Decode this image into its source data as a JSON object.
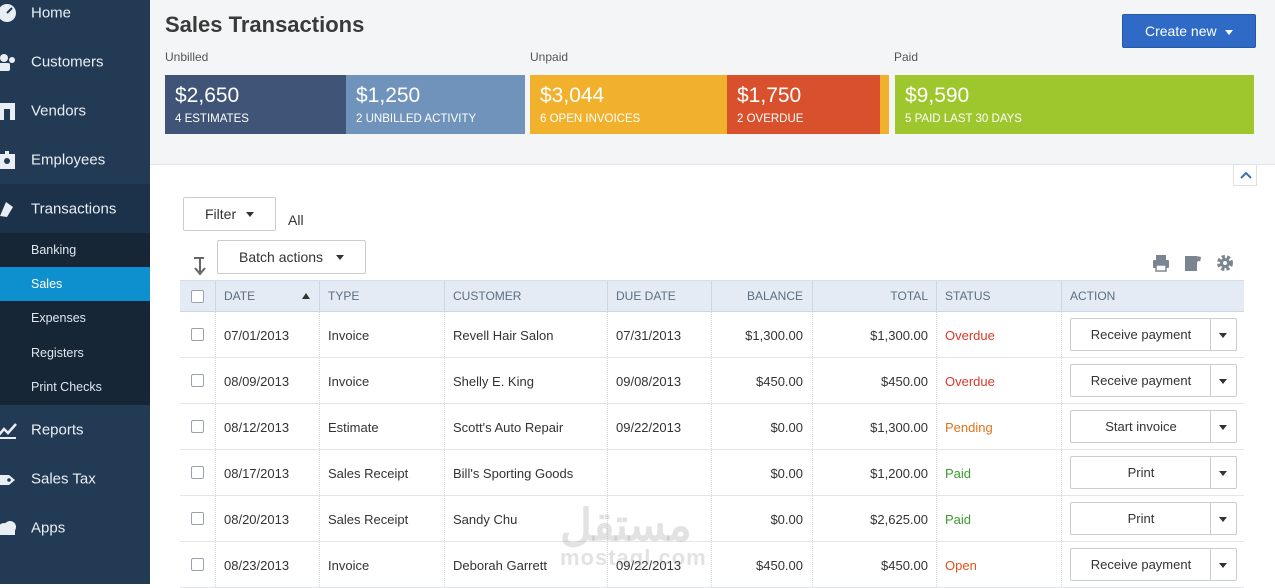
{
  "nav": {
    "items": [
      {
        "label": "Home",
        "icon": "home-icon"
      },
      {
        "label": "Customers",
        "icon": "customers-icon"
      },
      {
        "label": "Vendors",
        "icon": "vendors-icon"
      },
      {
        "label": "Employees",
        "icon": "employees-icon"
      },
      {
        "label": "Transactions",
        "icon": "transactions-icon"
      }
    ],
    "sub_items": [
      {
        "label": "Banking"
      },
      {
        "label": "Sales"
      },
      {
        "label": "Expenses"
      },
      {
        "label": "Registers"
      },
      {
        "label": "Print Checks"
      }
    ],
    "bottom_items": [
      {
        "label": "Reports",
        "icon": "reports-icon"
      },
      {
        "label": "Sales Tax",
        "icon": "sales-tax-icon"
      },
      {
        "label": "Apps",
        "icon": "apps-icon"
      }
    ]
  },
  "header": {
    "title": "Sales Transactions",
    "create_label": "Create new"
  },
  "summary": {
    "sections": [
      "Unbilled",
      "Unpaid",
      "Paid"
    ],
    "cards": [
      {
        "amount": "$2,650",
        "label": "4 Estimates",
        "color": "#3f5476"
      },
      {
        "amount": "$1,250",
        "label": "2 Unbilled Activity",
        "color": "#6f93bb"
      },
      {
        "amount": "$3,044",
        "label": "6 Open Invoices",
        "color": "#f2b12d"
      },
      {
        "amount": "$1,750",
        "label": "2 Overdue",
        "color": "#d9512c"
      },
      {
        "amount": "$9,590",
        "label": "5 Paid last 30 days",
        "color": "#9dc72d"
      }
    ]
  },
  "filter": {
    "button_label": "Filter",
    "value": "All"
  },
  "batch": {
    "label": "Batch actions"
  },
  "table": {
    "columns": [
      "Date",
      "Type",
      "Customer",
      "Due Date",
      "Balance",
      "Total",
      "Status",
      "Action"
    ],
    "rows": [
      {
        "date": "07/01/2013",
        "type": "Invoice",
        "customer": "Revell Hair Salon",
        "due": "07/31/2013",
        "balance": "$1,300.00",
        "total": "$1,300.00",
        "status": "Overdue",
        "action": "Receive payment"
      },
      {
        "date": "08/09/2013",
        "type": "Invoice",
        "customer": "Shelly E. King",
        "due": "09/08/2013",
        "balance": "$450.00",
        "total": "$450.00",
        "status": "Overdue",
        "action": "Receive payment"
      },
      {
        "date": "08/12/2013",
        "type": "Estimate",
        "customer": "Scott's Auto Repair",
        "due": "09/22/2013",
        "balance": "$0.00",
        "total": "$1,300.00",
        "status": "Pending",
        "action": "Start invoice"
      },
      {
        "date": "08/17/2013",
        "type": "Sales Receipt",
        "customer": "Bill's Sporting Goods",
        "due": "",
        "balance": "$0.00",
        "total": "$1,200.00",
        "status": "Paid",
        "action": "Print"
      },
      {
        "date": "08/20/2013",
        "type": "Sales Receipt",
        "customer": "Sandy Chu",
        "due": "",
        "balance": "$0.00",
        "total": "$2,625.00",
        "status": "Paid",
        "action": "Print"
      },
      {
        "date": "08/23/2013",
        "type": "Invoice",
        "customer": "Deborah Garrett",
        "due": "09/22/2013",
        "balance": "$450.00",
        "total": "$450.00",
        "status": "Open",
        "action": "Receive payment"
      }
    ]
  },
  "watermark": {
    "text": "مستقل",
    "sub": "mostaql.com"
  }
}
